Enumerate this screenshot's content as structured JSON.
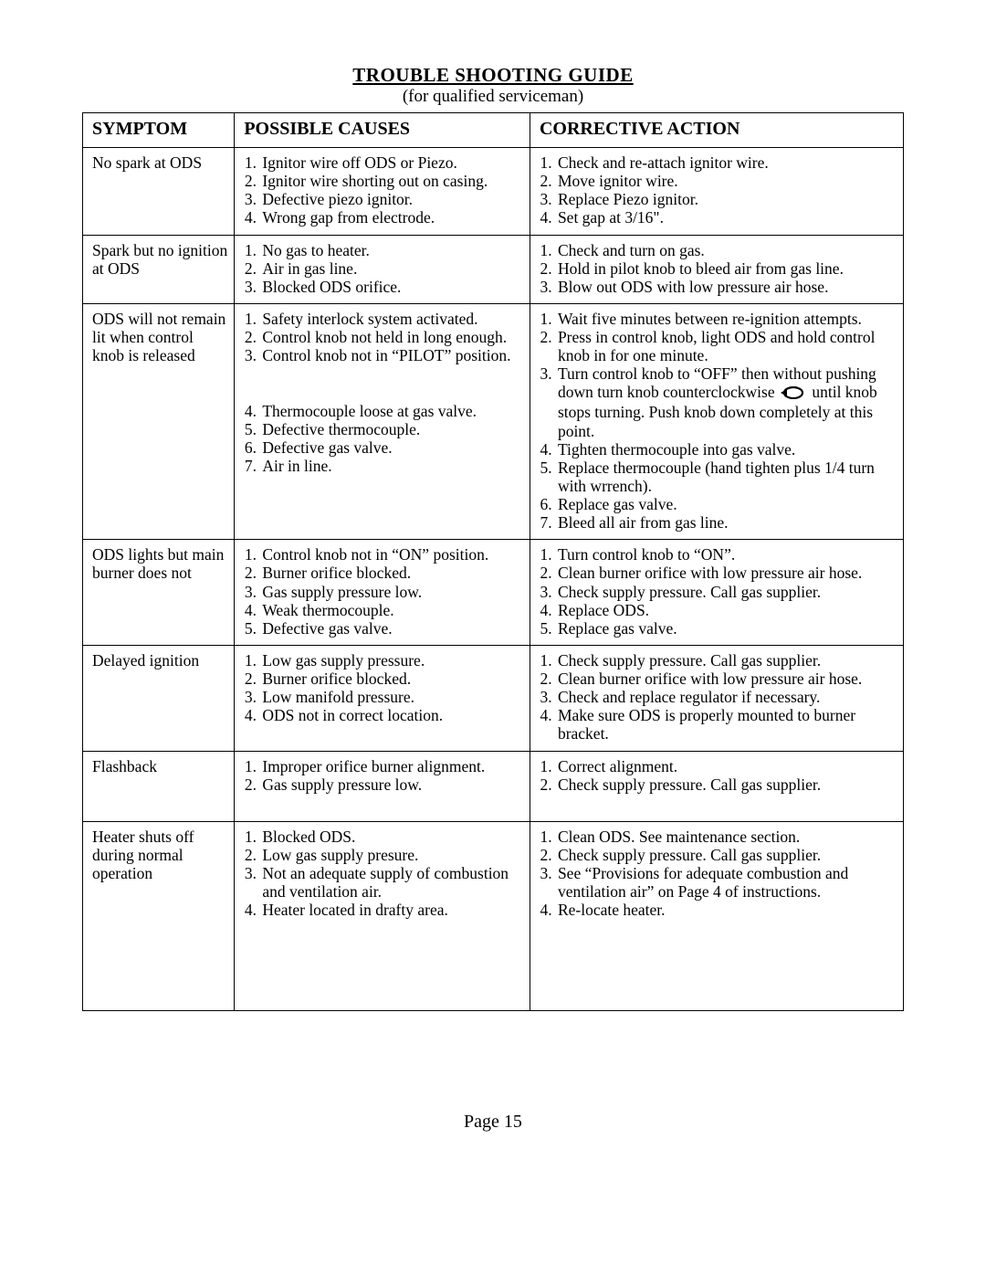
{
  "title": "TROUBLE SHOOTING GUIDE",
  "subtitle": "(for qualified serviceman)",
  "columns": [
    "SYMPTOM",
    "POSSIBLE CAUSES",
    "CORRECTIVE ACTION"
  ],
  "page_label": "Page 15",
  "rows": [
    {
      "symptom": "No spark at ODS",
      "causes": [
        "Ignitor wire off ODS or Piezo.",
        "Ignitor wire shorting out on casing.",
        "Defective piezo ignitor.",
        "Wrong gap from electrode."
      ],
      "actions": [
        "Check and re-attach ignitor wire.",
        "Move ignitor wire.",
        "Replace Piezo ignitor.",
        "Set gap at 3/16\"."
      ]
    },
    {
      "symptom": "Spark but no ignition at ODS",
      "causes": [
        "No gas to heater.",
        "Air in gas line.",
        "Blocked ODS orifice."
      ],
      "actions": [
        "Check and turn on gas.",
        "Hold in pilot knob to bleed air from gas line.",
        "Blow out ODS with low pressure air hose."
      ]
    },
    {
      "symptom": "ODS will not remain lit when control knob is released",
      "causes": [
        "Safety interlock system activated.\n",
        "Control knob not held in long enough.",
        "Control knob not in “PILOT” position.\n\n\n",
        "Thermocouple loose at gas valve.",
        "Defective thermocouple.\n",
        "Defective gas valve.",
        "Air in line."
      ],
      "actions_special": true
    },
    {
      "symptom": "ODS lights but main  burner does not",
      "causes": [
        "Control knob not in “ON” position.",
        "Burner orifice blocked.\n",
        "Gas supply pressure low.",
        "Weak thermocouple.",
        "Defective gas valve."
      ],
      "actions": [
        "Turn control knob to “ON”.",
        "Clean burner orifice with low pressure air hose.",
        "Check supply pressure.  Call gas supplier.",
        "Replace ODS.",
        "Replace gas valve."
      ]
    },
    {
      "symptom": "Delayed ignition",
      "causes": [
        "Low gas supply pressure.",
        "Burner orifice blocked.\n",
        "Low manifold pressure.",
        "ODS not in correct location."
      ],
      "actions": [
        "Check supply pressure.  Call gas supplier.",
        "Clean burner orifice with low pressure air hose.",
        "Check and replace regulator if necessary.",
        "Make sure ODS is properly mounted to burner bracket."
      ]
    },
    {
      "symptom": "Flashback",
      "causes": [
        "Improper orifice burner alignment.",
        "Gas supply pressure low."
      ],
      "actions": [
        "Correct alignment.",
        "Check supply pressure.  Call gas supplier."
      ],
      "extra_pad": true
    },
    {
      "symptom": "Heater shuts off during normal operation",
      "causes": [
        "Blocked ODS.",
        "Low gas supply presure.",
        "Not an adequate supply of combustion and ventilation air.\n",
        "Heater located in drafty area."
      ],
      "actions": [
        "Clean ODS.  See maintenance section.",
        "Check supply pressure.  Call gas supplier.",
        "See “Provisions for adequate combustion and ventilation air” on Page 4 of instructions.",
        "Re-locate heater."
      ],
      "last": true
    }
  ],
  "special_actions_row2": {
    "a1": "Wait five minutes between re-ignition attempts.",
    "a2": "Press in control knob, light ODS and hold control knob in for one minute.",
    "a3_pre": "Turn control knob to “OFF” then without pushing down turn knob counterclockwise ",
    "a3_post": " until knob stops turning.  Push knob down completely at this point.",
    "a4": "Tighten thermocouple into gas valve.",
    "a5": "Replace thermocouple (hand tighten plus 1/4 turn with wrrench).",
    "a6": "Replace gas valve.",
    "a7": "Bleed all air from gas line."
  },
  "styling": {
    "border_color": "#000000",
    "background": "#ffffff",
    "font_family": "Times New Roman",
    "title_fontsize": 21,
    "header_fontsize": 20,
    "body_fontsize": 17.5
  }
}
